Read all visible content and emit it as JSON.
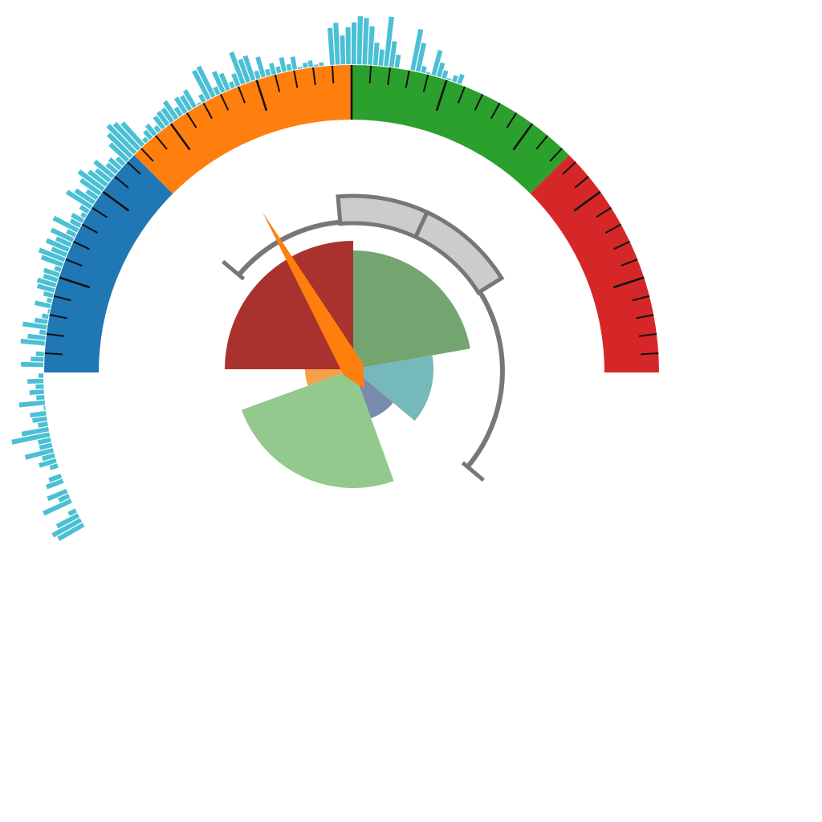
{
  "chart_data": [
    {
      "type": "gauge",
      "range": [
        0,
        100
      ],
      "bands": [
        {
          "from": 0,
          "to": 25,
          "color": "#1f77b4"
        },
        {
          "from": 25,
          "to": 50,
          "color": "#ff7f0e"
        },
        {
          "from": 50,
          "to": 75,
          "color": "#2ca02c"
        },
        {
          "from": 75,
          "to": 100,
          "color": "#d62728"
        }
      ],
      "major_tick_step": 10,
      "minor_tick_step": 2,
      "grid": false,
      "legend": "none"
    },
    {
      "type": "bar",
      "layout": "radial",
      "color": "#4bc0d4",
      "angle_range_deg": [
        -120,
        21
      ],
      "values": [
        36,
        40,
        30,
        10,
        0,
        38,
        14,
        26,
        0,
        22,
        16,
        0,
        10,
        22,
        16,
        36,
        16,
        16,
        48,
        34,
        12,
        18,
        20,
        2,
        32,
        10,
        18,
        10,
        20,
        6,
        0,
        28,
        16,
        10,
        0,
        30,
        22,
        8,
        30,
        16,
        8,
        2,
        20,
        6,
        12,
        22,
        24,
        18,
        20,
        8,
        28,
        34,
        20,
        30,
        20,
        30,
        12,
        34,
        14,
        16,
        6,
        12,
        36,
        28,
        16,
        30,
        38,
        28,
        22,
        30,
        16,
        18,
        12,
        30,
        40,
        48,
        44,
        38,
        6,
        12,
        16,
        8,
        18,
        20,
        20,
        26,
        12,
        22,
        20,
        24,
        2,
        10,
        40,
        42,
        10,
        28,
        22,
        8,
        16,
        42,
        30,
        32,
        10,
        26,
        8,
        14,
        8,
        18,
        8,
        16,
        2,
        6,
        8,
        2,
        4,
        0,
        46,
        52,
        36,
        46,
        52,
        60,
        58,
        48,
        28,
        20,
        62,
        32,
        16,
        0,
        0,
        52,
        36,
        8,
        2,
        32,
        18,
        10,
        2,
        8,
        12
      ],
      "grid": false,
      "legend": "none"
    },
    {
      "type": "polar_area",
      "slices": [
        {
          "start_deg": 0,
          "end_deg": 80,
          "value": 148,
          "color": "#74a571"
        },
        {
          "start_deg": 80,
          "end_deg": 130,
          "value": 100,
          "color": "#76b9bb"
        },
        {
          "start_deg": 130,
          "end_deg": 160,
          "value": 65,
          "color": "#788aad"
        },
        {
          "start_deg": 160,
          "end_deg": 250,
          "value": 148,
          "color": "#93c98d"
        },
        {
          "start_deg": 250,
          "end_deg": 270,
          "value": 60,
          "color": "#f5a04a"
        },
        {
          "start_deg": 270,
          "end_deg": 360,
          "value": 160,
          "color": "#aa322e"
        }
      ],
      "grid": false,
      "legend": "none"
    },
    {
      "type": "radial_scale",
      "angle_range_deg": [
        -50,
        130
      ],
      "color": "#777777",
      "segments": [
        {
          "start_deg": -5,
          "end_deg": 25,
          "color": "#cccccc"
        },
        {
          "start_deg": 25,
          "end_deg": 58,
          "color": "#cccccc"
        }
      ],
      "needle": {
        "angle_deg": -30,
        "color": "#ff7f0e"
      },
      "grid": false,
      "legend": "none"
    }
  ]
}
